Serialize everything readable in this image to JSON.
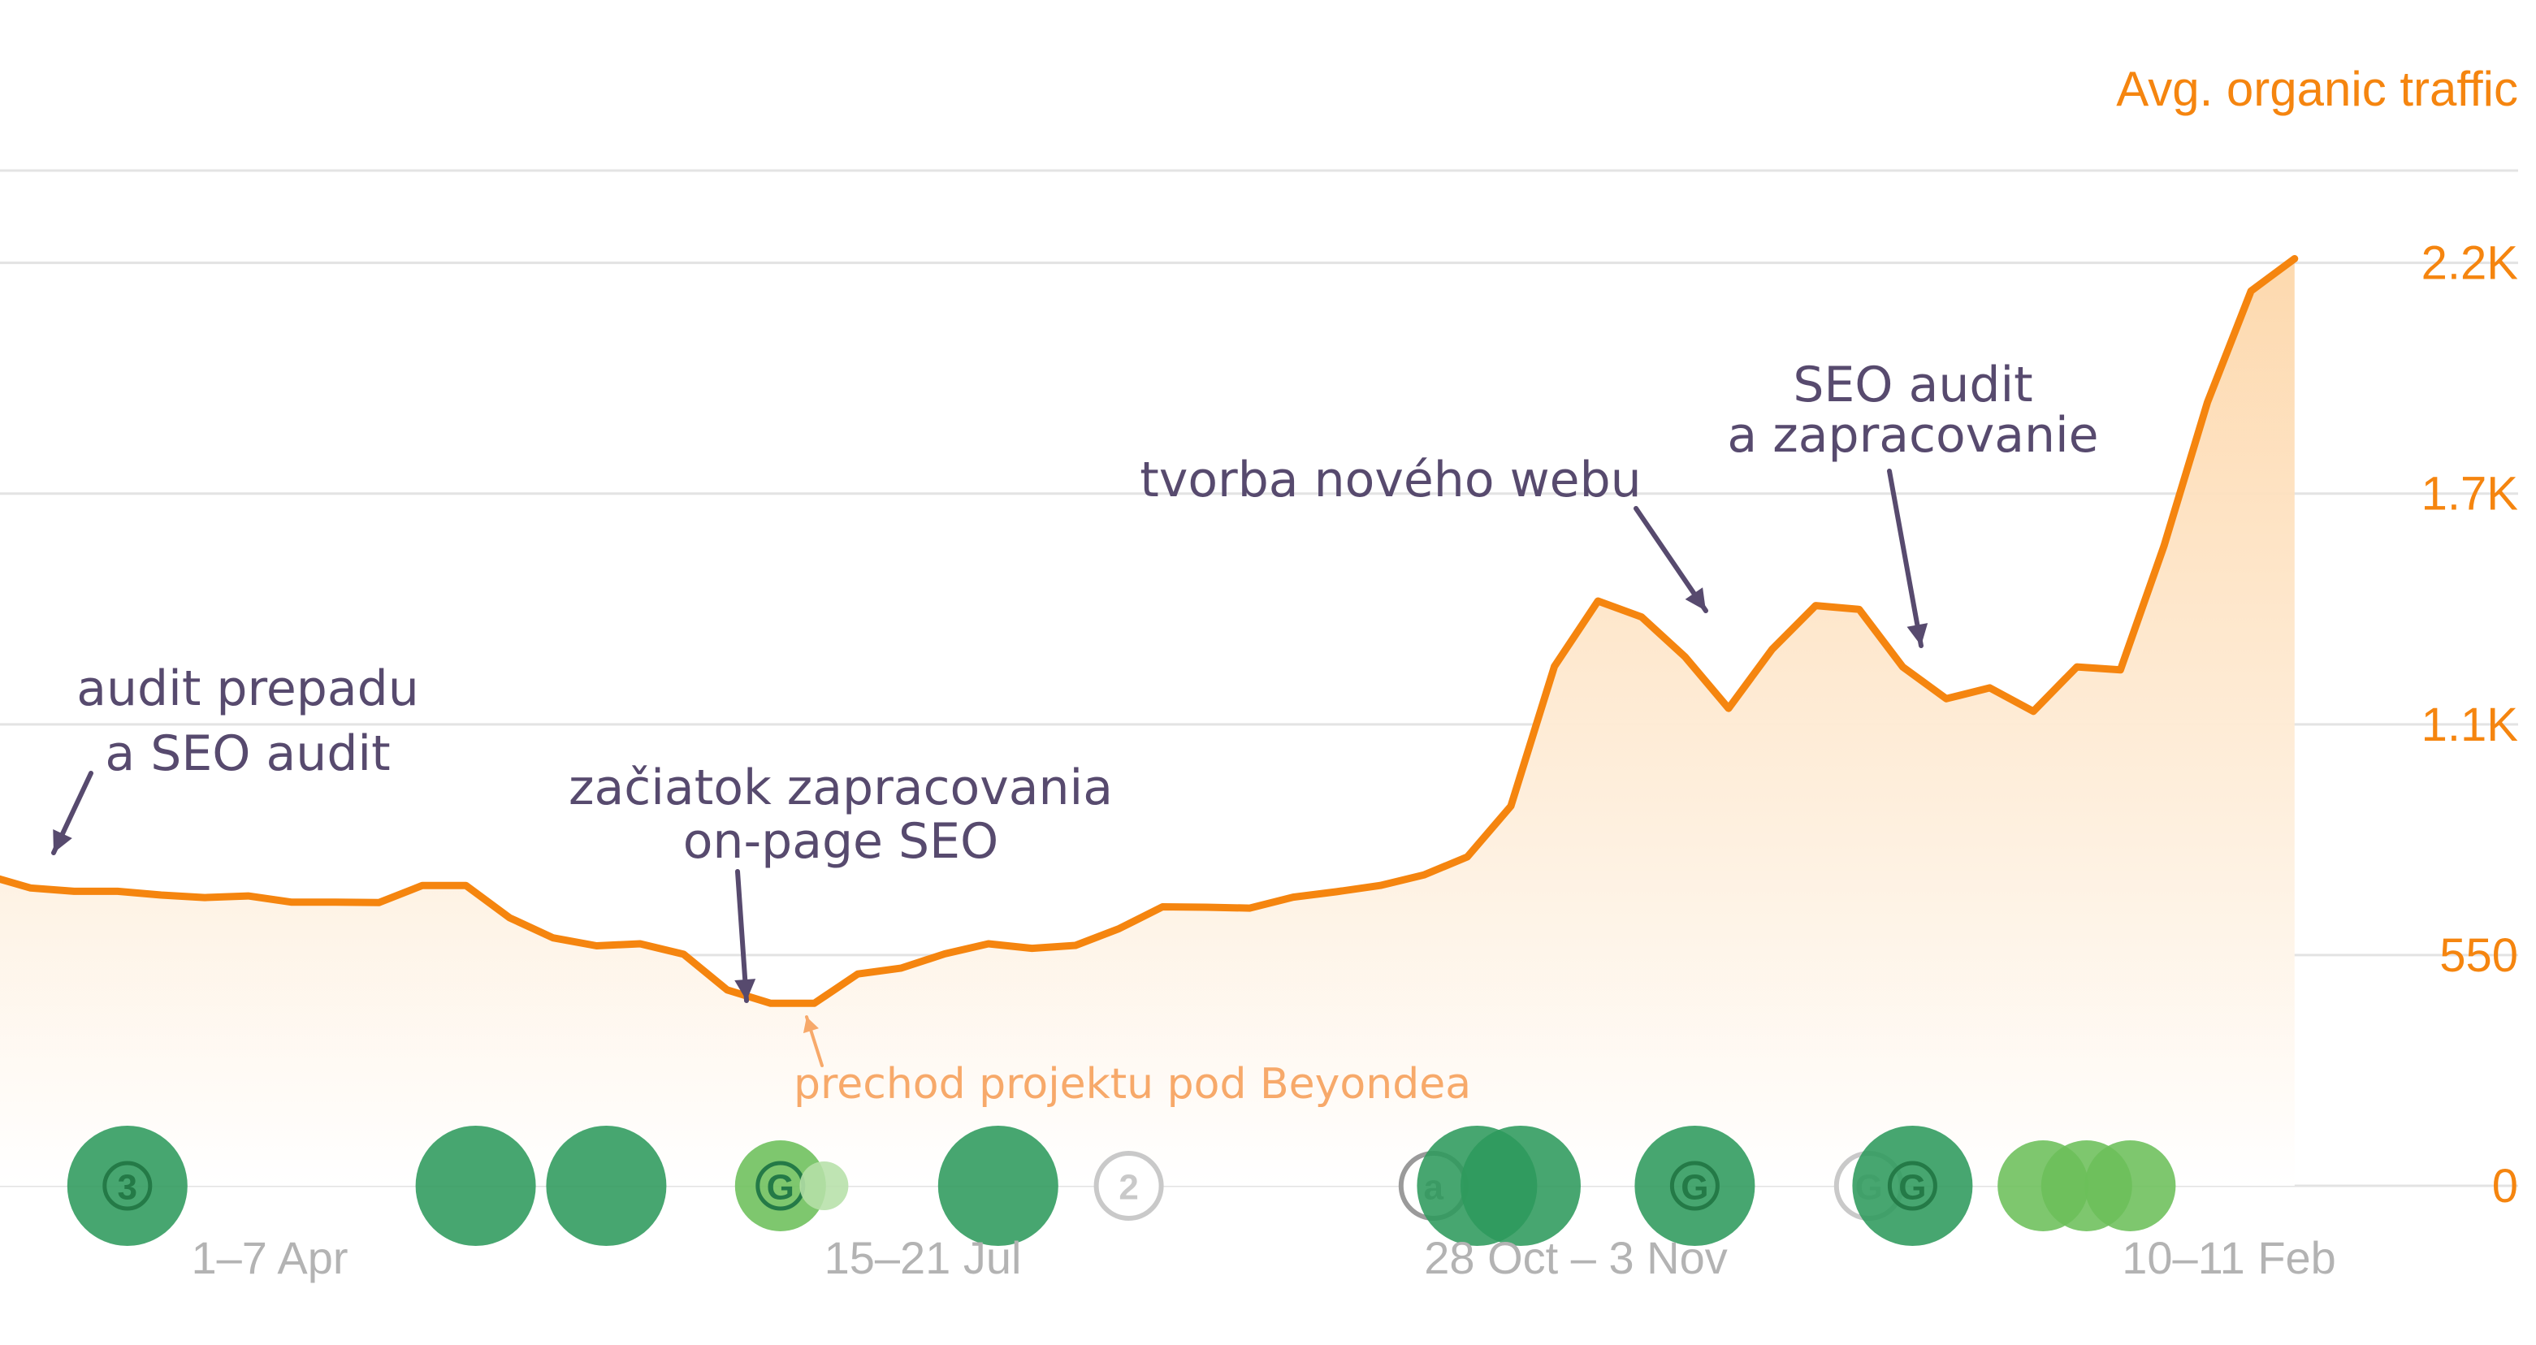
{
  "chart_data": {
    "type": "area",
    "title": "",
    "ylabel": "Avg. organic traffic",
    "ylim": [
      0,
      2420
    ],
    "yticks": [
      0,
      550,
      1100,
      1650,
      2200
    ],
    "ytick_labels": [
      "0",
      "550",
      "1.1K",
      "1.7K",
      "2.2K"
    ],
    "xtick_labels": [
      {
        "label": "1–7 Apr",
        "index": 5
      },
      {
        "label": "15–21 Jul",
        "index": 20
      },
      {
        "label": "28 Oct – 3 Nov",
        "index": 35
      },
      {
        "label": "10–11 Feb",
        "index": 50
      }
    ],
    "series": [
      {
        "name": "Avg. organic traffic",
        "color": "#f5850f",
        "values": [
          740,
          710,
          702,
          702,
          693,
          687,
          691,
          676,
          676,
          675,
          716,
          716,
          639,
          591,
          572,
          577,
          552,
          467,
          435,
          435,
          505,
          519,
          553,
          577,
          566,
          573,
          613,
          665,
          664,
          662,
          688,
          701,
          716,
          741,
          784,
          905,
          1238,
          1394,
          1356,
          1261,
          1138,
          1279,
          1383,
          1374,
          1237,
          1161,
          1187,
          1131,
          1237,
          1230,
          1525,
          1868,
          2133,
          2210
        ]
      }
    ],
    "annotations": [
      {
        "text": [
          "audit prepadu",
          "a SEO audit"
        ],
        "index": 1
      },
      {
        "text": [
          "začiatok zapracovania",
          "on-page SEO"
        ],
        "index": 17
      },
      {
        "text": [
          "tvorba nového webu"
        ],
        "index": 38
      },
      {
        "text": [
          "SEO audit",
          "a zapracovanie"
        ],
        "index": 43
      },
      {
        "text": [
          "prechod projektu pod Beyondea"
        ],
        "index": 18,
        "color": "#f7a96a"
      }
    ],
    "markers": [
      {
        "index": 3,
        "label": "3",
        "size": "large",
        "color": "#2e9a5c"
      },
      {
        "index": 11,
        "label": "",
        "size": "large",
        "color": "#2e9a5c"
      },
      {
        "index": 14,
        "label": "",
        "size": "large",
        "color": "#2e9a5c"
      },
      {
        "index": 18,
        "label": "G",
        "size": "small",
        "color": "#6cbf5a"
      },
      {
        "index": 19,
        "label": "",
        "size": "tiny",
        "color": "#b6e0a8"
      },
      {
        "index": 23,
        "label": "",
        "size": "large",
        "color": "#2e9a5c"
      },
      {
        "index": 26,
        "label": "2",
        "size": "small-outline",
        "color": "#c9c9c9"
      },
      {
        "index": 33,
        "label": "a",
        "size": "small-outline",
        "color": "#9a9a9a"
      },
      {
        "index": 34,
        "label": "",
        "size": "large",
        "color": "#2e9a5c"
      },
      {
        "index": 35,
        "label": "",
        "size": "large",
        "color": "#2e9a5c"
      },
      {
        "index": 39,
        "label": "G",
        "size": "large",
        "color": "#2e9a5c"
      },
      {
        "index": 43,
        "label": "G",
        "size": "small-outline",
        "color": "#c9c9c9"
      },
      {
        "index": 44,
        "label": "G",
        "size": "large",
        "color": "#2e9a5c"
      },
      {
        "index": 47,
        "label": "",
        "size": "medium",
        "color": "#6cbf5a"
      },
      {
        "index": 48,
        "label": "",
        "size": "medium",
        "color": "#6cbf5a"
      },
      {
        "index": 49,
        "label": "",
        "size": "medium",
        "color": "#6cbf5a"
      }
    ]
  }
}
